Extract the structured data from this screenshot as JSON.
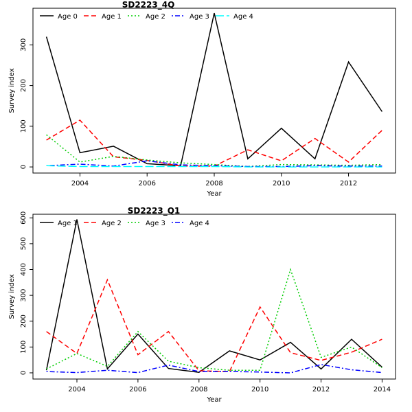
{
  "chart_data": [
    {
      "type": "line",
      "title": "SD2223_4Q",
      "xlabel": "Year",
      "ylabel": "Survey index",
      "x": [
        2003,
        2004,
        2005,
        2006,
        2007,
        2008,
        2009,
        2010,
        2011,
        2012,
        2013
      ],
      "xlim": [
        2002.6,
        2013.4
      ],
      "ylim": [
        -15,
        390
      ],
      "xticks": [
        2004,
        2006,
        2008,
        2010,
        2012
      ],
      "yticks": [
        0,
        100,
        200,
        300
      ],
      "legend_position": "top-left",
      "grid": false,
      "series": [
        {
          "name": "Age 0",
          "color": "#000000",
          "dash": "solid",
          "values": [
            320,
            35,
            51,
            8,
            3,
            378,
            20,
            95,
            20,
            258,
            136
          ]
        },
        {
          "name": "Age 1",
          "color": "#ff0000",
          "dash": "dashed",
          "values": [
            66,
            115,
            25,
            16,
            2,
            2,
            42,
            15,
            70,
            12,
            90
          ]
        },
        {
          "name": "Age 2",
          "color": "#00cd00",
          "dash": "dotted",
          "values": [
            79,
            12,
            26,
            17,
            10,
            6,
            1,
            6,
            5,
            4,
            6
          ]
        },
        {
          "name": "Age 3",
          "color": "#0000ff",
          "dash": "dotdash",
          "values": [
            3,
            7,
            2,
            15,
            5,
            3,
            1,
            1,
            3,
            2,
            2
          ]
        },
        {
          "name": "Age 4",
          "color": "#00ffff",
          "dash": "longdash",
          "values": [
            3,
            1,
            1,
            1,
            1,
            1,
            0,
            0,
            0,
            0,
            0
          ]
        }
      ]
    },
    {
      "type": "line",
      "title": "SD2223_Q1",
      "xlabel": "Year",
      "ylabel": "Survey index",
      "x": [
        2003,
        2004,
        2005,
        2006,
        2007,
        2008,
        2009,
        2010,
        2011,
        2012,
        2013,
        2014
      ],
      "xlim": [
        2002.56,
        2014.44
      ],
      "ylim": [
        -24,
        614
      ],
      "xticks": [
        2004,
        2006,
        2008,
        2010,
        2012,
        2014
      ],
      "yticks": [
        0,
        100,
        200,
        300,
        400,
        500,
        600
      ],
      "legend_position": "top-left",
      "grid": false,
      "series": [
        {
          "name": "Age 1",
          "color": "#000000",
          "dash": "solid",
          "values": [
            10,
            594,
            15,
            150,
            17,
            2,
            85,
            50,
            118,
            15,
            130,
            22
          ]
        },
        {
          "name": "Age 2",
          "color": "#ff0000",
          "dash": "dashed",
          "values": [
            160,
            75,
            360,
            70,
            160,
            8,
            5,
            255,
            78,
            48,
            80,
            130
          ]
        },
        {
          "name": "Age 3",
          "color": "#00cd00",
          "dash": "dotted",
          "values": [
            15,
            75,
            25,
            160,
            45,
            20,
            10,
            10,
            400,
            60,
            100,
            20
          ]
        },
        {
          "name": "Age 4",
          "color": "#0000ff",
          "dash": "dotdash",
          "values": [
            5,
            1,
            10,
            1,
            30,
            5,
            5,
            3,
            0,
            32,
            12,
            1
          ]
        }
      ]
    }
  ]
}
